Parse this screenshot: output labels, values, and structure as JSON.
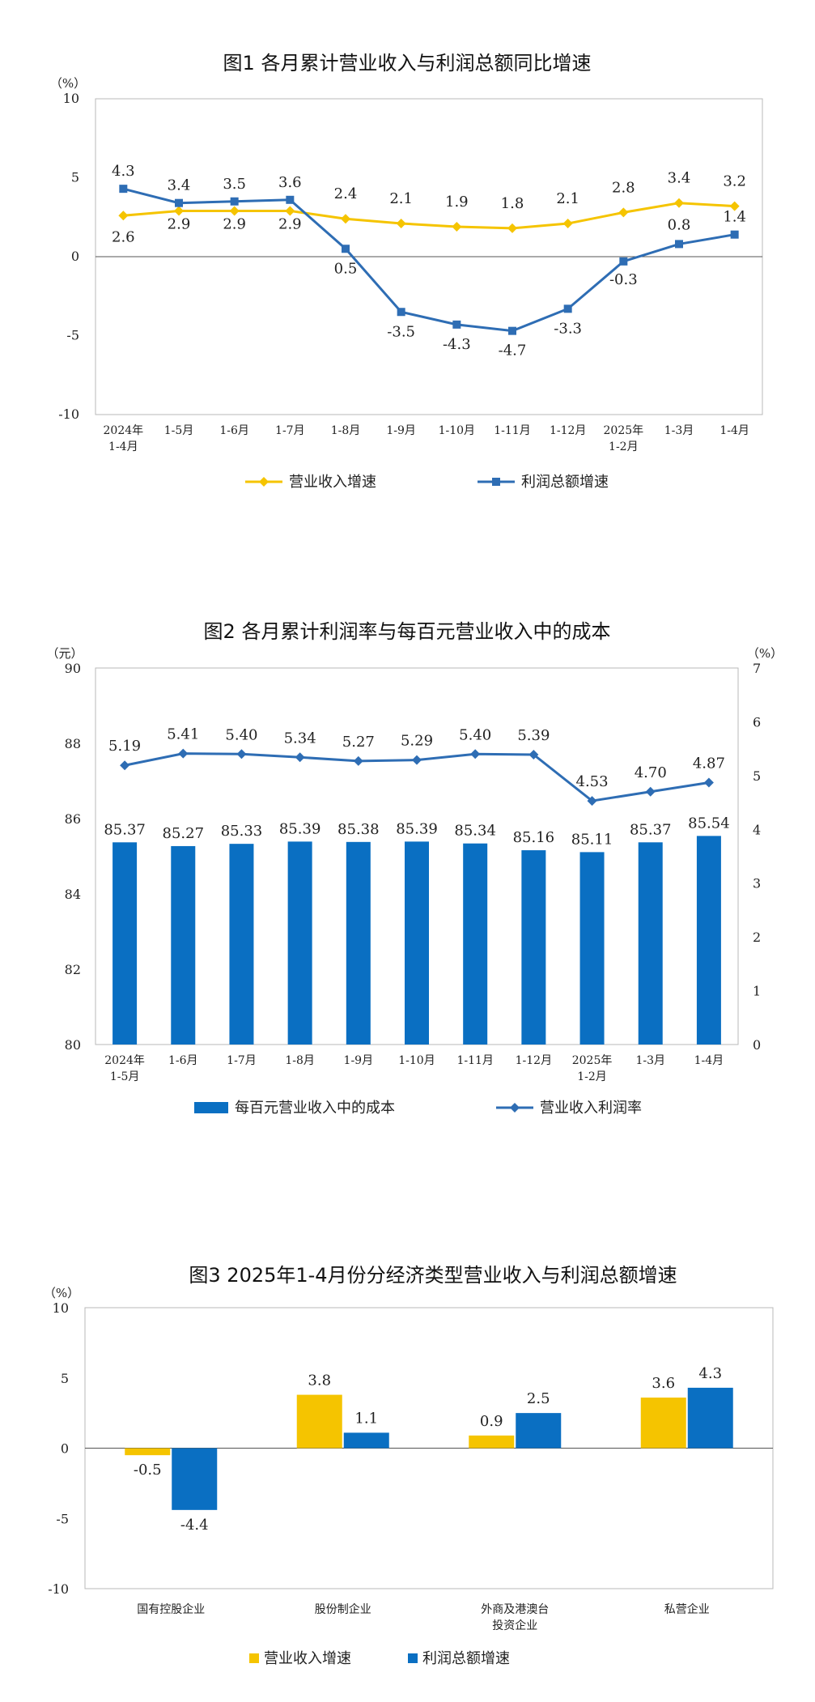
{
  "chart_data": [
    {
      "type": "line",
      "title": "图1  各月累计营业收入与利润总额同比增速",
      "y_unit": "（%）",
      "ylim": [
        -10,
        10
      ],
      "yticks": [
        -10,
        -5,
        0,
        5,
        10
      ],
      "categories": [
        [
          "2024年",
          "1-4月"
        ],
        [
          "1-5月"
        ],
        [
          "1-6月"
        ],
        [
          "1-7月"
        ],
        [
          "1-8月"
        ],
        [
          "1-9月"
        ],
        [
          "1-10月"
        ],
        [
          "1-11月"
        ],
        [
          "1-12月"
        ],
        [
          "2025年",
          "1-2月"
        ],
        [
          "1-3月"
        ],
        [
          "1-4月"
        ]
      ],
      "series": [
        {
          "name": "营业收入增速",
          "color": "#F5C400",
          "marker": "diamond",
          "values": [
            2.6,
            2.9,
            2.9,
            2.9,
            2.4,
            2.1,
            1.9,
            1.8,
            2.1,
            2.8,
            3.4,
            3.2
          ]
        },
        {
          "name": "利润总额增速",
          "color": "#2E6DB4",
          "marker": "square",
          "values": [
            4.3,
            3.4,
            3.5,
            3.6,
            0.5,
            -3.5,
            -4.3,
            -4.7,
            -3.3,
            -0.3,
            0.8,
            1.4
          ]
        }
      ],
      "legend": "bottom"
    },
    {
      "type": "bar+line",
      "title": "图2  各月累计利润率与每百元营业收入中的成本",
      "y_unit_left": "（元）",
      "y_unit_right": "（%）",
      "ylim_left": [
        80,
        90
      ],
      "yticks_left": [
        80,
        82,
        84,
        86,
        88,
        90
      ],
      "ylim_right": [
        0,
        7
      ],
      "yticks_right": [
        0,
        1,
        2,
        3,
        4,
        5,
        6,
        7
      ],
      "categories": [
        [
          "2024年",
          "1-5月"
        ],
        [
          "1-6月"
        ],
        [
          "1-7月"
        ],
        [
          "1-8月"
        ],
        [
          "1-9月"
        ],
        [
          "1-10月"
        ],
        [
          "1-11月"
        ],
        [
          "1-12月"
        ],
        [
          "2025年",
          "1-2月"
        ],
        [
          "1-3月"
        ],
        [
          "1-4月"
        ]
      ],
      "series": [
        {
          "name": "每百元营业收入中的成本",
          "color": "#0A6FC2",
          "kind": "bar",
          "axis": "left",
          "values": [
            85.37,
            85.27,
            85.33,
            85.39,
            85.38,
            85.39,
            85.34,
            85.16,
            85.11,
            85.37,
            85.54
          ]
        },
        {
          "name": "营业收入利润率",
          "color": "#2E6DB4",
          "kind": "line",
          "axis": "right",
          "marker": "diamond",
          "values": [
            5.19,
            5.41,
            5.4,
            5.34,
            5.27,
            5.29,
            5.4,
            5.39,
            4.53,
            4.7,
            4.87
          ]
        }
      ],
      "legend": "bottom"
    },
    {
      "type": "bar",
      "title": "图3  2025年1-4月份分经济类型营业收入与利润总额增速",
      "y_unit": "（%）",
      "ylim": [
        -10,
        10
      ],
      "yticks": [
        -10,
        -5,
        0,
        5,
        10
      ],
      "categories": [
        [
          "国有控股企业"
        ],
        [
          "股份制企业"
        ],
        [
          "外商及港澳台",
          "投资企业"
        ],
        [
          "私营企业"
        ]
      ],
      "series": [
        {
          "name": "营业收入增速",
          "color": "#F5C400",
          "values": [
            -0.5,
            3.8,
            0.9,
            3.6
          ]
        },
        {
          "name": "利润总额增速",
          "color": "#0A6FC2",
          "values": [
            -4.4,
            1.1,
            2.5,
            4.3
          ]
        }
      ],
      "legend": "bottom"
    }
  ]
}
